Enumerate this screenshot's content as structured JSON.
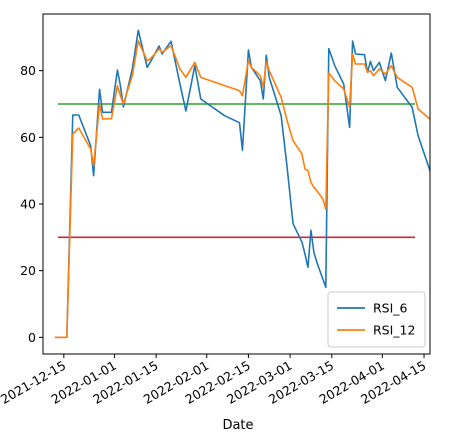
{
  "chart_data": {
    "type": "line",
    "title": "",
    "xlabel": "Date",
    "ylabel": "",
    "grid": false,
    "legend": "lower-right",
    "x_ticks": [
      "2021-12-15",
      "2022-01-01",
      "2022-01-15",
      "2022-02-01",
      "2022-02-15",
      "2022-03-01",
      "2022-03-15",
      "2022-04-01",
      "2022-04-15"
    ],
    "y_ticks": [
      0,
      20,
      40,
      60,
      80
    ],
    "xlim": [
      "2021-12-08",
      "2022-04-17"
    ],
    "ylim": [
      -5,
      97
    ],
    "series": [
      {
        "name": "RSI_6",
        "color": "#1f77b4",
        "points": [
          [
            "2021-12-12",
            0
          ],
          [
            "2021-12-16",
            0
          ],
          [
            "2021-12-18",
            66.7
          ],
          [
            "2021-12-20",
            66.7
          ],
          [
            "2021-12-24",
            57.5
          ],
          [
            "2021-12-25",
            48.5
          ],
          [
            "2021-12-27",
            74.4
          ],
          [
            "2021-12-28",
            67.5
          ],
          [
            "2021-12-31",
            67.5
          ],
          [
            "2022-01-02",
            80.2
          ],
          [
            "2022-01-03",
            75.5
          ],
          [
            "2022-01-04",
            69.1
          ],
          [
            "2022-01-07",
            80.5
          ],
          [
            "2022-01-09",
            92.1
          ],
          [
            "2022-01-12",
            81.0
          ],
          [
            "2022-01-13",
            82.5
          ],
          [
            "2022-01-16",
            87.4
          ],
          [
            "2022-01-17",
            85.0
          ],
          [
            "2022-01-20",
            88.8
          ],
          [
            "2022-01-23",
            76.0
          ],
          [
            "2022-01-25",
            67.9
          ],
          [
            "2022-01-28",
            81.5
          ],
          [
            "2022-01-30",
            71.5
          ],
          [
            "2022-02-07",
            66.5
          ],
          [
            "2022-02-12",
            64.4
          ],
          [
            "2022-02-13",
            56.1
          ],
          [
            "2022-02-15",
            86.2
          ],
          [
            "2022-02-16",
            81.0
          ],
          [
            "2022-02-19",
            77.0
          ],
          [
            "2022-02-20",
            71.5
          ],
          [
            "2022-02-21",
            84.6
          ],
          [
            "2022-02-22",
            78.0
          ],
          [
            "2022-02-26",
            66.5
          ],
          [
            "2022-02-28",
            51.0
          ],
          [
            "2022-03-02",
            34.1
          ],
          [
            "2022-03-05",
            28.5
          ],
          [
            "2022-03-06",
            25.0
          ],
          [
            "2022-03-07",
            21.0
          ],
          [
            "2022-03-08",
            32.1
          ],
          [
            "2022-03-09",
            25.5
          ],
          [
            "2022-03-10",
            22.5
          ],
          [
            "2022-03-12",
            17.5
          ],
          [
            "2022-03-13",
            15.0
          ],
          [
            "2022-03-14",
            86.6
          ],
          [
            "2022-03-16",
            81.5
          ],
          [
            "2022-03-19",
            76.0
          ],
          [
            "2022-03-21",
            63.0
          ],
          [
            "2022-03-22",
            88.9
          ],
          [
            "2022-03-23",
            85.0
          ],
          [
            "2022-03-26",
            84.8
          ],
          [
            "2022-03-27",
            79.5
          ],
          [
            "2022-03-28",
            82.8
          ],
          [
            "2022-03-29",
            80.0
          ],
          [
            "2022-03-31",
            82.5
          ],
          [
            "2022-04-02",
            77.0
          ],
          [
            "2022-04-04",
            85.3
          ],
          [
            "2022-04-06",
            75.0
          ],
          [
            "2022-04-11",
            69.0
          ],
          [
            "2022-04-13",
            60.5
          ],
          [
            "2022-04-17",
            50.0
          ],
          [
            "2022-04-18",
            41.3
          ]
        ]
      },
      {
        "name": "RSI_12",
        "color": "#ff7f0e",
        "points": [
          [
            "2021-12-12",
            0
          ],
          [
            "2021-12-16",
            0
          ],
          [
            "2021-12-18",
            61.0
          ],
          [
            "2021-12-20",
            62.8
          ],
          [
            "2021-12-24",
            56.5
          ],
          [
            "2021-12-25",
            51.5
          ],
          [
            "2021-12-27",
            70.0
          ],
          [
            "2021-12-28",
            65.5
          ],
          [
            "2021-12-31",
            65.6
          ],
          [
            "2022-01-02",
            75.5
          ],
          [
            "2022-01-03",
            72.5
          ],
          [
            "2022-01-04",
            70.0
          ],
          [
            "2022-01-07",
            78.5
          ],
          [
            "2022-01-09",
            88.9
          ],
          [
            "2022-01-12",
            83.0
          ],
          [
            "2022-01-13",
            83.5
          ],
          [
            "2022-01-16",
            86.5
          ],
          [
            "2022-01-17",
            85.5
          ],
          [
            "2022-01-20",
            87.5
          ],
          [
            "2022-01-23",
            80.5
          ],
          [
            "2022-01-25",
            78.0
          ],
          [
            "2022-01-28",
            82.5
          ],
          [
            "2022-01-30",
            78.0
          ],
          [
            "2022-02-07",
            75.5
          ],
          [
            "2022-02-12",
            74.0
          ],
          [
            "2022-02-13",
            72.5
          ],
          [
            "2022-02-15",
            83.0
          ],
          [
            "2022-02-16",
            81.0
          ],
          [
            "2022-02-19",
            78.5
          ],
          [
            "2022-02-20",
            75.0
          ],
          [
            "2022-02-21",
            82.7
          ],
          [
            "2022-02-22",
            80.0
          ],
          [
            "2022-02-26",
            72.0
          ],
          [
            "2022-02-28",
            65.0
          ],
          [
            "2022-03-02",
            59.0
          ],
          [
            "2022-03-05",
            55.0
          ],
          [
            "2022-03-06",
            50.5
          ],
          [
            "2022-03-07",
            50.0
          ],
          [
            "2022-03-08",
            46.5
          ],
          [
            "2022-03-09",
            45.0
          ],
          [
            "2022-03-10",
            44.0
          ],
          [
            "2022-03-12",
            41.5
          ],
          [
            "2022-03-13",
            38.5
          ],
          [
            "2022-03-14",
            79.3
          ],
          [
            "2022-03-16",
            77.0
          ],
          [
            "2022-03-19",
            74.5
          ],
          [
            "2022-03-21",
            69.0
          ],
          [
            "2022-03-22",
            85.0
          ],
          [
            "2022-03-23",
            82.0
          ],
          [
            "2022-03-26",
            82.0
          ],
          [
            "2022-03-27",
            79.5
          ],
          [
            "2022-03-28",
            80.0
          ],
          [
            "2022-03-29",
            78.5
          ],
          [
            "2022-03-31",
            80.5
          ],
          [
            "2022-04-02",
            79.0
          ],
          [
            "2022-04-04",
            81.5
          ],
          [
            "2022-04-06",
            78.0
          ],
          [
            "2022-04-11",
            75.0
          ],
          [
            "2022-04-13",
            68.5
          ],
          [
            "2022-04-17",
            65.5
          ],
          [
            "2022-04-18",
            62.5
          ]
        ]
      }
    ],
    "reference_lines": [
      {
        "y": 70,
        "color": "#2ca02c"
      },
      {
        "y": 30,
        "color": "#d62728"
      }
    ]
  }
}
